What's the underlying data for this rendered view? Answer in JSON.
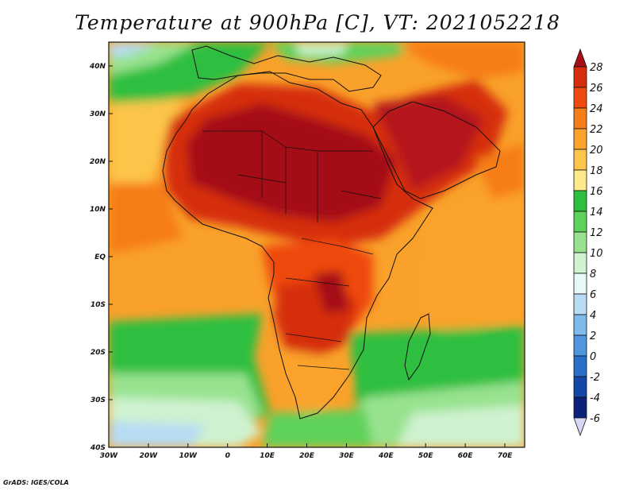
{
  "title": "Temperature at 900hPa [C], VT: 2021052218",
  "credit": "GrADS: IGES/COLA",
  "map": {
    "lon_range": [
      -30,
      75
    ],
    "lat_range": [
      -40,
      45
    ],
    "lon_ticks": [
      {
        "value": -30,
        "label": "30W"
      },
      {
        "value": -20,
        "label": "20W"
      },
      {
        "value": -10,
        "label": "10W"
      },
      {
        "value": 0,
        "label": "0"
      },
      {
        "value": 10,
        "label": "10E"
      },
      {
        "value": 20,
        "label": "20E"
      },
      {
        "value": 30,
        "label": "30E"
      },
      {
        "value": 40,
        "label": "40E"
      },
      {
        "value": 50,
        "label": "50E"
      },
      {
        "value": 60,
        "label": "60E"
      },
      {
        "value": 70,
        "label": "70E"
      }
    ],
    "lat_ticks": [
      {
        "value": 40,
        "label": "40N"
      },
      {
        "value": 30,
        "label": "30N"
      },
      {
        "value": 20,
        "label": "20N"
      },
      {
        "value": 10,
        "label": "10N"
      },
      {
        "value": 0,
        "label": "EQ"
      },
      {
        "value": -10,
        "label": "10S"
      },
      {
        "value": -20,
        "label": "20S"
      },
      {
        "value": -30,
        "label": "30S"
      },
      {
        "value": -40,
        "label": "40S"
      }
    ]
  },
  "colorbar": {
    "labels": [
      "28",
      "26",
      "24",
      "22",
      "20",
      "18",
      "16",
      "14",
      "12",
      "10",
      "8",
      "6",
      "4",
      "2",
      "0",
      "-2",
      "-4",
      "-6"
    ],
    "colors": [
      "#a50f15",
      "#d62e0d",
      "#ef4a0f",
      "#f77d18",
      "#fba32a",
      "#fdc54a",
      "#fde98a",
      "#2fbf3f",
      "#5ed25a",
      "#98e28f",
      "#cff2d0",
      "#e8f7f7",
      "#b7dcf4",
      "#7fbaea",
      "#4f96dd",
      "#2a6fcc",
      "#1447a8",
      "#0b2278",
      "#d8d8f6"
    ]
  }
}
